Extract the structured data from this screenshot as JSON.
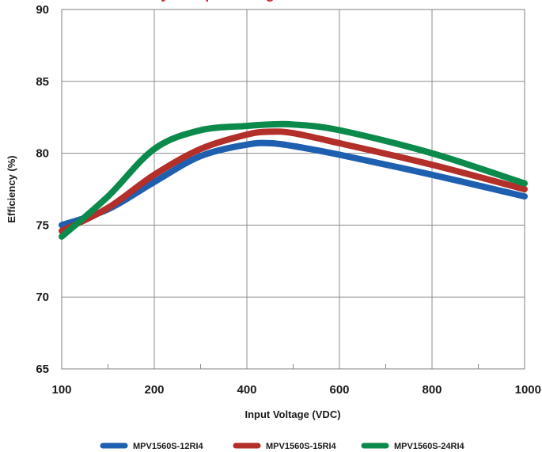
{
  "chart_data": {
    "type": "line",
    "title": "Efficiency vs Input Voltage",
    "title_color": "#c0282d",
    "xlabel": "Input Voltage (VDC)",
    "ylabel": "Efficiency (%)",
    "x_ticks": [
      "100",
      "200",
      "400",
      "600",
      "800",
      "1000"
    ],
    "y_ticks": [
      "65",
      "70",
      "75",
      "80",
      "85",
      "90"
    ],
    "ylim": [
      65,
      90
    ],
    "grid": true,
    "legend_position": "bottom",
    "series": [
      {
        "name": "MPV1560S-12RI4",
        "color": "#1f5fb0",
        "points": [
          [
            100,
            75.0
          ],
          [
            150,
            76.1
          ],
          [
            200,
            78.0
          ],
          [
            300,
            79.8
          ],
          [
            400,
            80.6
          ],
          [
            450,
            80.7
          ],
          [
            500,
            80.5
          ],
          [
            600,
            79.9
          ],
          [
            800,
            78.5
          ],
          [
            1000,
            77.0
          ]
        ]
      },
      {
        "name": "MPV1560S-15RI4",
        "color": "#b22f2a",
        "points": [
          [
            100,
            74.6
          ],
          [
            150,
            76.2
          ],
          [
            200,
            78.5
          ],
          [
            300,
            80.3
          ],
          [
            400,
            81.3
          ],
          [
            450,
            81.5
          ],
          [
            500,
            81.4
          ],
          [
            600,
            80.7
          ],
          [
            800,
            79.2
          ],
          [
            1000,
            77.5
          ]
        ]
      },
      {
        "name": "MPV1560S-24RI4",
        "color": "#0c8a4b",
        "points": [
          [
            100,
            74.2
          ],
          [
            150,
            77.0
          ],
          [
            200,
            80.3
          ],
          [
            300,
            81.6
          ],
          [
            400,
            81.9
          ],
          [
            450,
            82.0
          ],
          [
            500,
            82.0
          ],
          [
            600,
            81.6
          ],
          [
            800,
            80.0
          ],
          [
            1000,
            77.9
          ]
        ]
      }
    ]
  }
}
